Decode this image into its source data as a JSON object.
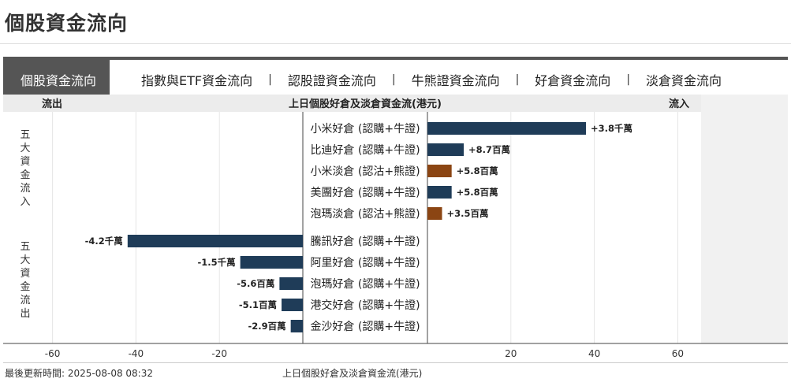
{
  "page": {
    "title": "個股資金流向"
  },
  "tabs": [
    {
      "label": "個股資金流向",
      "active": true
    },
    {
      "label": "指數與ETF資金流向",
      "active": false
    },
    {
      "label": "認股證資金流向",
      "active": false
    },
    {
      "label": "牛熊證資金流向",
      "active": false
    },
    {
      "label": "好倉資金流向",
      "active": false
    },
    {
      "label": "淡倉資金流向",
      "active": false
    }
  ],
  "tab_separator": "|",
  "chart_data": {
    "type": "bar",
    "orientation": "horizontal",
    "title": "上日個股好倉及淡倉資金流(港元)",
    "left_header": "流出",
    "right_header": "流入",
    "group_labels": {
      "inflow": "五大資金流入",
      "outflow": "五大資金流出"
    },
    "xlim": [
      -60,
      60
    ],
    "xticks": [
      -60,
      -40,
      -20,
      20,
      40,
      60
    ],
    "inflow": [
      {
        "category": "小米好倉 (認購+牛證)",
        "value": 38,
        "label": "+3.8千萬",
        "kind": "bull"
      },
      {
        "category": "比迪好倉 (認購+牛證)",
        "value": 8.7,
        "label": "+8.7百萬",
        "kind": "bull"
      },
      {
        "category": "小米淡倉 (認沽+熊證)",
        "value": 5.8,
        "label": "+5.8百萬",
        "kind": "bear"
      },
      {
        "category": "美團好倉 (認購+牛證)",
        "value": 5.8,
        "label": "+5.8百萬",
        "kind": "bull"
      },
      {
        "category": "泡瑪淡倉 (認沽+熊證)",
        "value": 3.5,
        "label": "+3.5百萬",
        "kind": "bear"
      }
    ],
    "outflow": [
      {
        "category": "騰訊好倉 (認購+牛證)",
        "value": -42,
        "label": "-4.2千萬",
        "kind": "bull"
      },
      {
        "category": "阿里好倉 (認購+牛證)",
        "value": -15,
        "label": "-1.5千萬",
        "kind": "bull"
      },
      {
        "category": "泡瑪好倉 (認購+牛證)",
        "value": -5.6,
        "label": "-5.6百萬",
        "kind": "bull"
      },
      {
        "category": "港交好倉 (認購+牛證)",
        "value": -5.1,
        "label": "-5.1百萬",
        "kind": "bull"
      },
      {
        "category": "金沙好倉 (認購+牛證)",
        "value": -2.9,
        "label": "-2.9百萬",
        "kind": "bull"
      }
    ],
    "colors": {
      "bull": "#1f3c58",
      "bear": "#8b4513",
      "grid": "#e6e6e6",
      "shade": "#f1f1f1"
    },
    "grid": true
  },
  "footer": {
    "updated": "最後更新時間: 2025-08-08 08:32",
    "caption": "上日個股好倉及淡倉資金流(港元)"
  }
}
